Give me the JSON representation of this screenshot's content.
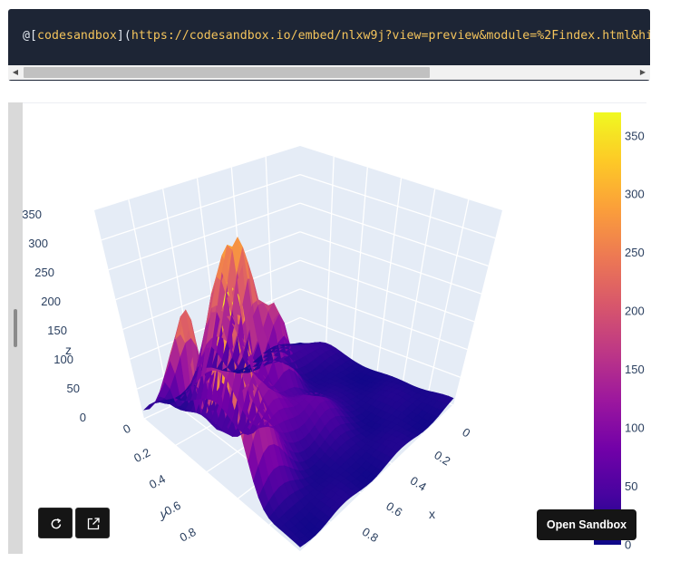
{
  "code_block": {
    "prefix": "@",
    "bracket_open": "[",
    "link_text": "codesandbox",
    "bracket_close": "](",
    "url": "https://codesandbox.io/embed/nlxw9j?view=preview&module=%2Findex.html&hi"
  },
  "embed": {
    "open_sandbox_label": "Open Sandbox",
    "refresh_icon": "refresh-icon",
    "external_icon": "open-external-icon"
  },
  "chart_data": {
    "type": "surface",
    "colorscale": "plasma",
    "colorscale_stops": [
      "#0d0887",
      "#46039f",
      "#7201a8",
      "#9c179e",
      "#bd3786",
      "#d8576b",
      "#ed7953",
      "#fb9f3a",
      "#fdca26",
      "#f0f921"
    ],
    "colorbar": {
      "ticks": [
        "0",
        "50",
        "100",
        "150",
        "200",
        "250",
        "300",
        "350"
      ],
      "range": [
        0,
        370
      ]
    },
    "axes": {
      "x": {
        "title": "x",
        "ticks": [
          "0",
          "0.2",
          "0.4",
          "0.6",
          "0.8"
        ],
        "range": [
          0,
          1
        ]
      },
      "y": {
        "title": "y",
        "ticks": [
          "0",
          "0.2",
          "0.4",
          "0.6",
          "0.8"
        ],
        "range": [
          0,
          1
        ]
      },
      "z": {
        "title": "z",
        "ticks": [
          "0",
          "50",
          "100",
          "150",
          "200",
          "250",
          "300",
          "350"
        ],
        "range": [
          0,
          370
        ]
      }
    },
    "z_max": 370,
    "background": "#e5ecf6"
  }
}
